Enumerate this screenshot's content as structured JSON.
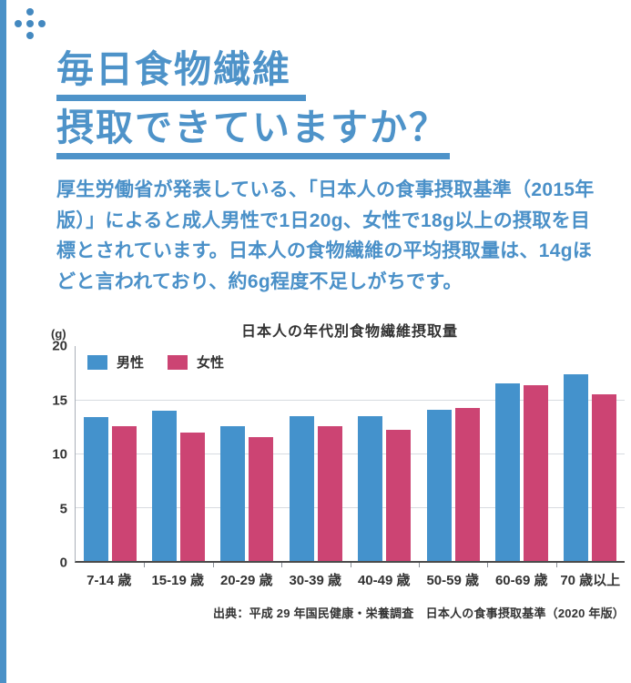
{
  "page": {
    "title_line1": "毎日食物繊維",
    "title_line2": "摂取できていますか？",
    "body_text": "厚生労働省が発表している、「日本人の食事摂取基準（2015年版）」によると成人男性で1日20g、女性で18g以上の摂取を目標とされています。日本人の食物繊維の平均摂取量は、14gほどと言われており、約6g程度不足しがちです。",
    "source": "出典：平成 29 年国民健康・栄養調査　日本人の食事摂取基準（2020 年版）"
  },
  "colors": {
    "accent_blue": "#4b91c7",
    "male_bar": "#4492cc",
    "female_bar": "#cc4473",
    "gridline": "#d7dbe0",
    "axis": "#4b4b4b",
    "label_text": "#333333"
  },
  "chart_data": {
    "type": "bar",
    "title": "日本人の年代別食物繊維摂取量",
    "unit_label": "(g)",
    "categories": [
      "7-14 歳",
      "15-19 歳",
      "20-29 歳",
      "30-39 歳",
      "40-49 歳",
      "50-59 歳",
      "60-69 歳",
      "70 歳以上"
    ],
    "series": [
      {
        "name": "男性",
        "color": "#4492cc",
        "values": [
          13.4,
          14.0,
          12.6,
          13.5,
          13.5,
          14.1,
          16.6,
          17.4
        ]
      },
      {
        "name": "女性",
        "color": "#cc4473",
        "values": [
          12.6,
          12.0,
          11.6,
          12.6,
          12.2,
          14.3,
          16.4,
          15.5
        ]
      }
    ],
    "ylim": [
      0,
      20
    ],
    "yticks": [
      0,
      5,
      10,
      15,
      20
    ],
    "grid": true,
    "legend_position": "top-left"
  }
}
